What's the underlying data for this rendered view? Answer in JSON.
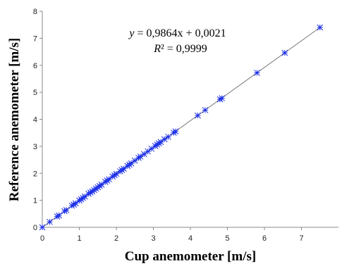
{
  "chart_data": {
    "type": "scatter",
    "xlabel": "Cup anemometer [m/s]",
    "ylabel": "Reference anemometer [m/s]",
    "xlim": [
      0,
      8
    ],
    "ylim": [
      0,
      8
    ],
    "x_ticks": [
      "0",
      "1",
      "2",
      "3",
      "4",
      "5",
      "6",
      "7"
    ],
    "y_ticks": [
      "0",
      "1",
      "2",
      "3",
      "4",
      "5",
      "6",
      "7",
      "8"
    ],
    "grid": false,
    "marker": "asterisk",
    "series_color": "#1a2ee8",
    "trendline": {
      "type": "linear",
      "slope": 0.9864,
      "intercept": 0.0021,
      "x_range": [
        0,
        7.5
      ],
      "color": "#777777",
      "equation_label": "y = 0,9864x + 0,0021",
      "r2_label": "R² = 0,9999"
    },
    "series": [
      {
        "points": [
          [
            0.0,
            0.0
          ],
          [
            0.2,
            0.2
          ],
          [
            0.4,
            0.4
          ],
          [
            0.45,
            0.44
          ],
          [
            0.6,
            0.6
          ],
          [
            0.65,
            0.64
          ],
          [
            0.8,
            0.8
          ],
          [
            0.85,
            0.84
          ],
          [
            0.9,
            0.89
          ],
          [
            1.0,
            0.99
          ],
          [
            1.05,
            1.04
          ],
          [
            1.1,
            1.09
          ],
          [
            1.15,
            1.14
          ],
          [
            1.25,
            1.24
          ],
          [
            1.3,
            1.29
          ],
          [
            1.35,
            1.33
          ],
          [
            1.4,
            1.38
          ],
          [
            1.45,
            1.43
          ],
          [
            1.5,
            1.48
          ],
          [
            1.55,
            1.53
          ],
          [
            1.6,
            1.58
          ],
          [
            1.7,
            1.68
          ],
          [
            1.75,
            1.73
          ],
          [
            1.8,
            1.78
          ],
          [
            1.9,
            1.88
          ],
          [
            1.95,
            1.93
          ],
          [
            2.0,
            1.98
          ],
          [
            2.1,
            2.07
          ],
          [
            2.15,
            2.12
          ],
          [
            2.2,
            2.17
          ],
          [
            2.3,
            2.27
          ],
          [
            2.35,
            2.32
          ],
          [
            2.4,
            2.37
          ],
          [
            2.5,
            2.47
          ],
          [
            2.6,
            2.57
          ],
          [
            2.65,
            2.62
          ],
          [
            2.75,
            2.71
          ],
          [
            2.85,
            2.81
          ],
          [
            2.95,
            2.91
          ],
          [
            3.05,
            3.01
          ],
          [
            3.1,
            3.06
          ],
          [
            3.15,
            3.11
          ],
          [
            3.2,
            3.16
          ],
          [
            3.3,
            3.26
          ],
          [
            3.4,
            3.35
          ],
          [
            3.55,
            3.5
          ],
          [
            3.6,
            3.55
          ],
          [
            4.2,
            4.14
          ],
          [
            4.4,
            4.34
          ],
          [
            4.8,
            4.74
          ],
          [
            4.85,
            4.78
          ],
          [
            5.8,
            5.72
          ],
          [
            6.55,
            6.46
          ],
          [
            7.5,
            7.4
          ]
        ]
      }
    ]
  }
}
